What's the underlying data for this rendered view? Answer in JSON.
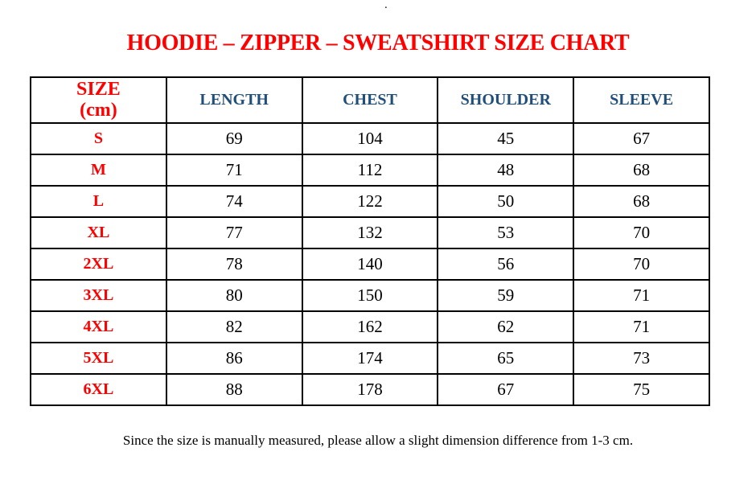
{
  "page": {
    "stray_dot": ".",
    "title": "HOODIE – ZIPPER – SWEATSHIRT SIZE CHART",
    "footnote": "Since the size is manually measured, please allow a slight dimension difference from 1-3 cm."
  },
  "colors": {
    "title_red": "#ff0000",
    "size_label_red": "#ff0000",
    "header_blue": "#1f4e79",
    "value_black": "#000000",
    "border_black": "#000000",
    "background": "#ffffff"
  },
  "table_header": {
    "size_line1": "SIZE",
    "size_line2": "(cm)",
    "measures": [
      "LENGTH",
      "CHEST",
      "SHOULDER",
      "SLEEVE"
    ]
  },
  "chart_data": {
    "type": "table",
    "title": "HOODIE – ZIPPER – SWEATSHIRT SIZE CHART",
    "unit": "cm",
    "columns": [
      "SIZE (cm)",
      "LENGTH",
      "CHEST",
      "SHOULDER",
      "SLEEVE"
    ],
    "rows": [
      [
        "S",
        "69",
        "104",
        "45",
        "67"
      ],
      [
        "M",
        "71",
        "112",
        "48",
        "68"
      ],
      [
        "L",
        "74",
        "122",
        "50",
        "68"
      ],
      [
        "XL",
        "77",
        "132",
        "53",
        "70"
      ],
      [
        "2XL",
        "78",
        "140",
        "56",
        "70"
      ],
      [
        "3XL",
        "80",
        "150",
        "59",
        "71"
      ],
      [
        "4XL",
        "82",
        "162",
        "62",
        "71"
      ],
      [
        "5XL",
        "86",
        "174",
        "65",
        "73"
      ],
      [
        "6XL",
        "88",
        "178",
        "67",
        "75"
      ]
    ],
    "footnote": "Since the size is manually measured, please allow a slight dimension difference from 1-3 cm."
  }
}
